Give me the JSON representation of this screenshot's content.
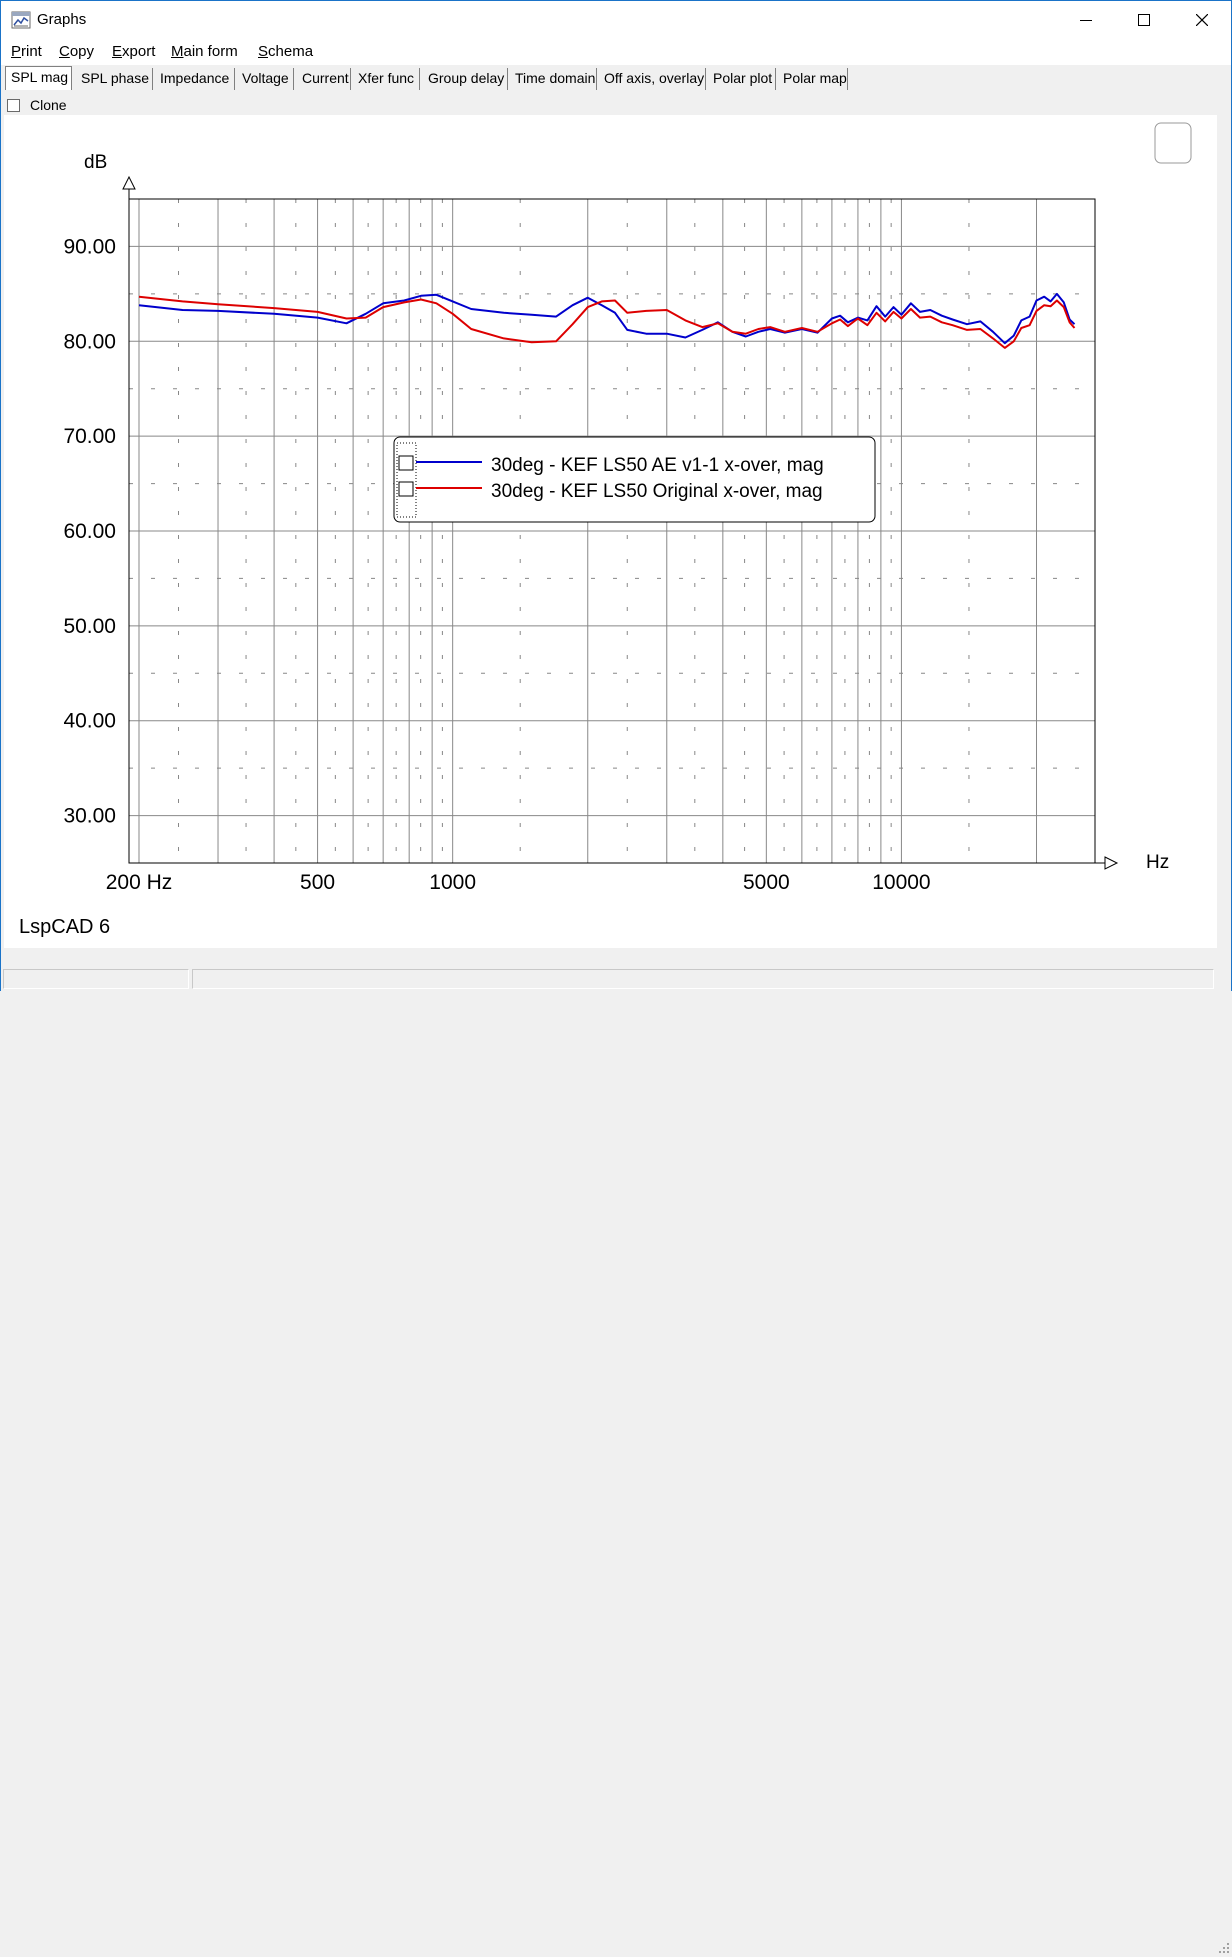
{
  "window": {
    "title": "Graphs",
    "icon": "graphs-app-icon"
  },
  "menu": [
    {
      "label": "Print",
      "ul": "P",
      "rest": "rint"
    },
    {
      "label": "Copy",
      "ul": "C",
      "rest": "opy"
    },
    {
      "label": "Export",
      "ul": "E",
      "rest": "xport"
    },
    {
      "label": "Main form",
      "ul": "M",
      "rest": "ain form"
    },
    {
      "label": "Schema",
      "ul": "S",
      "rest": "chema"
    }
  ],
  "tabs": [
    {
      "label": "SPL mag",
      "active": true
    },
    {
      "label": "SPL phase",
      "active": false
    },
    {
      "label": "Impedance",
      "active": false
    },
    {
      "label": "Voltage",
      "active": false
    },
    {
      "label": "Current",
      "active": false
    },
    {
      "label": "Xfer func",
      "active": false
    },
    {
      "label": "Group delay",
      "active": false
    },
    {
      "label": "Time domain",
      "active": false
    },
    {
      "label": "Off axis, overlay",
      "active": false
    },
    {
      "label": "Polar plot",
      "active": false
    },
    {
      "label": "Polar map",
      "active": false
    }
  ],
  "clone": {
    "label": "Clone",
    "checked": false
  },
  "footer_brand": "LspCAD 6",
  "chart_data": {
    "type": "line",
    "ylabel": "dB",
    "xlabel": "Hz",
    "x_scale": "log",
    "xlim": [
      190,
      27000
    ],
    "ylim": [
      25,
      95
    ],
    "yticks": [
      30,
      40,
      50,
      60,
      70,
      80,
      90
    ],
    "ytick_labels": [
      "30.00",
      "40.00",
      "50.00",
      "60.00",
      "70.00",
      "80.00",
      "90.00"
    ],
    "xticks": [
      200,
      500,
      1000,
      5000,
      10000
    ],
    "xtick_labels": [
      "200 Hz",
      "500",
      "1000",
      "5000",
      "10000"
    ],
    "grid": true,
    "legend_position": "center",
    "series": [
      {
        "name": "30deg - KEF LS50 AE v1-1 x-over, mag",
        "color": "#0000cc",
        "x": [
          200,
          250,
          300,
          400,
          500,
          580,
          640,
          700,
          780,
          850,
          920,
          1000,
          1100,
          1300,
          1500,
          1700,
          1850,
          2000,
          2150,
          2300,
          2450,
          2700,
          3000,
          3300,
          3600,
          3900,
          4200,
          4500,
          4800,
          5100,
          5500,
          6000,
          6500,
          7000,
          7300,
          7600,
          8000,
          8400,
          8800,
          9200,
          9600,
          10000,
          10500,
          11000,
          11600,
          12300,
          13000,
          14000,
          15000,
          16000,
          17000,
          17800,
          18500,
          19300,
          20000,
          20800,
          21500,
          22200,
          23000,
          23700,
          24300
        ],
        "y": [
          83.8,
          83.3,
          83.2,
          82.9,
          82.5,
          81.9,
          82.9,
          84.0,
          84.3,
          84.8,
          84.9,
          84.2,
          83.4,
          83.0,
          82.8,
          82.6,
          83.8,
          84.6,
          83.8,
          83.0,
          81.2,
          80.8,
          80.8,
          80.4,
          81.2,
          82.0,
          81.0,
          80.5,
          81.0,
          81.3,
          80.9,
          81.3,
          80.9,
          82.4,
          82.7,
          82.0,
          82.5,
          82.2,
          83.7,
          82.6,
          83.6,
          82.8,
          84.0,
          83.1,
          83.3,
          82.7,
          82.3,
          81.8,
          82.1,
          81.0,
          79.8,
          80.6,
          82.2,
          82.6,
          84.3,
          84.7,
          84.2,
          85.0,
          84.1,
          82.3,
          81.8
        ]
      },
      {
        "name": "30deg - KEF LS50 Original x-over, mag",
        "color": "#dd0000",
        "x": [
          200,
          250,
          300,
          400,
          500,
          580,
          640,
          700,
          780,
          850,
          920,
          1000,
          1100,
          1300,
          1500,
          1700,
          1850,
          2000,
          2150,
          2300,
          2450,
          2700,
          3000,
          3300,
          3600,
          3900,
          4200,
          4500,
          4800,
          5100,
          5500,
          6000,
          6500,
          7000,
          7300,
          7600,
          8000,
          8400,
          8800,
          9200,
          9600,
          10000,
          10500,
          11000,
          11600,
          12300,
          13000,
          14000,
          15000,
          16000,
          17000,
          17800,
          18500,
          19300,
          20000,
          20800,
          21500,
          22200,
          23000,
          23700,
          24300
        ],
        "y": [
          84.7,
          84.2,
          83.9,
          83.5,
          83.1,
          82.4,
          82.5,
          83.6,
          84.1,
          84.4,
          84.0,
          82.9,
          81.3,
          80.3,
          79.9,
          80.0,
          81.8,
          83.6,
          84.2,
          84.3,
          83.0,
          83.2,
          83.3,
          82.2,
          81.5,
          81.9,
          81.0,
          80.8,
          81.3,
          81.5,
          81.0,
          81.4,
          81.0,
          81.9,
          82.3,
          81.6,
          82.4,
          81.7,
          83.0,
          82.1,
          83.1,
          82.4,
          83.4,
          82.5,
          82.6,
          82.0,
          81.7,
          81.2,
          81.3,
          80.3,
          79.3,
          80.0,
          81.4,
          81.7,
          83.2,
          83.8,
          83.7,
          84.3,
          83.6,
          82.0,
          81.4
        ]
      }
    ]
  }
}
